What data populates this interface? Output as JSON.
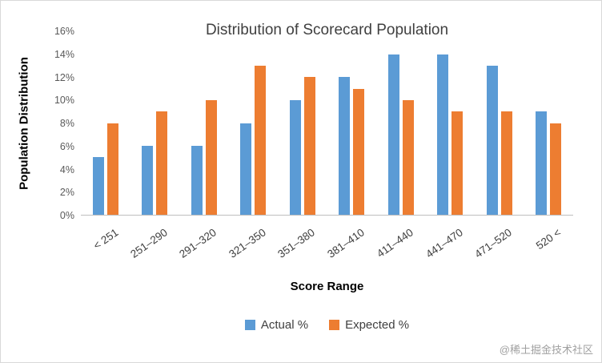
{
  "watermark": "@稀土掘金技术社区",
  "chart_data": {
    "type": "bar",
    "title": "Distribution of Scorecard Population",
    "xlabel": "Score Range",
    "ylabel": "Population Distribution",
    "ylim": [
      0,
      16
    ],
    "ytick_step": 2,
    "ytick_suffix": "%",
    "grid": false,
    "legend_position": "bottom",
    "categories": [
      "< 251",
      "251–290",
      "291–320",
      "321–350",
      "351–380",
      "381–410",
      "411–440",
      "441–470",
      "471–520",
      "520 <"
    ],
    "series": [
      {
        "name": "Actual %",
        "color": "#5B9BD5",
        "values": [
          5,
          6,
          6,
          8,
          10,
          12,
          14,
          14,
          13,
          9
        ]
      },
      {
        "name": "Expected %",
        "color": "#ED7D31",
        "values": [
          8,
          9,
          10,
          13,
          12,
          11,
          10,
          9,
          9,
          8
        ]
      }
    ]
  }
}
